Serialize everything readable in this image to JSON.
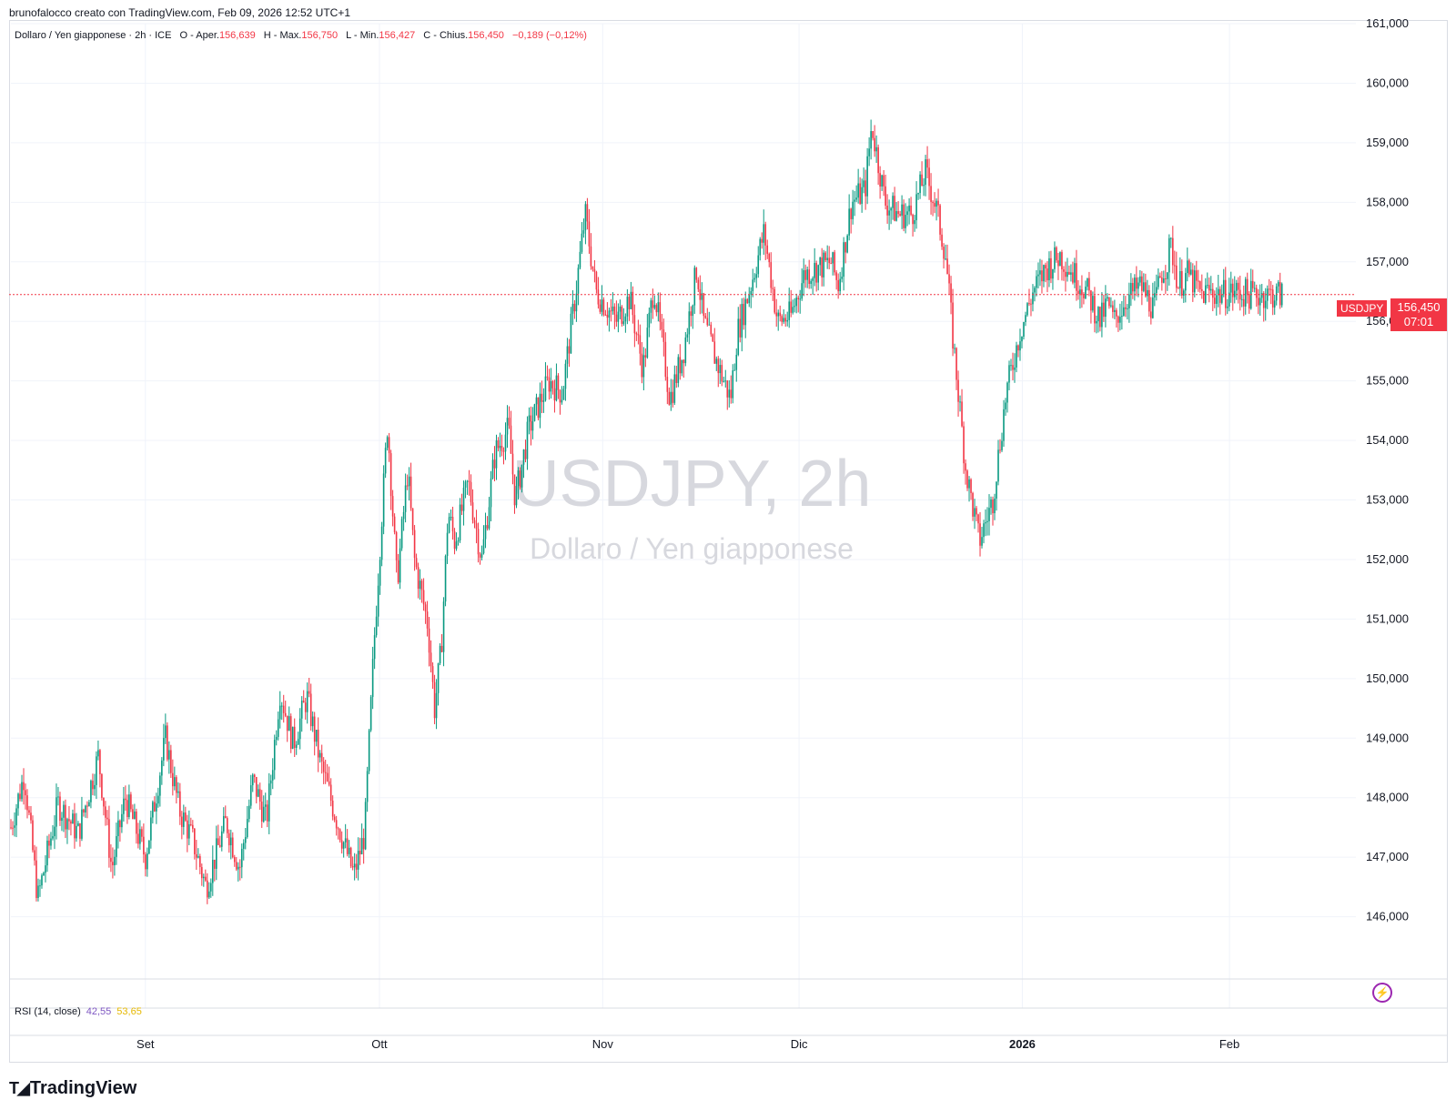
{
  "caption": "brunofalocco creato con TradingView.com, Feb 09, 2026 12:52 UTC+1",
  "legend": {
    "title": "Dollaro / Yen giapponese · 2h · ICE",
    "o_label": "O - Aper.",
    "o_value": "156,639",
    "h_label": "H - Max.",
    "h_value": "156,750",
    "l_label": "L - Min.",
    "l_value": "156,427",
    "c_label": "C - Chius.",
    "c_value": "156,450",
    "change": "−0,189 (−0,12%)"
  },
  "watermark": {
    "symbol": "USDJPY, 2h",
    "name": "Dollaro / Yen giapponese"
  },
  "price_tag": {
    "symbol": "USDJPY",
    "price": "156,450",
    "countdown": "07:01"
  },
  "rsi": {
    "label": "RSI (14, close)",
    "value1": "42,55",
    "value2": "53,65"
  },
  "brand": "TradingView",
  "colors": {
    "up": "#089981",
    "down": "#f23645",
    "grid": "#f0f3fa",
    "text": "#131722",
    "watermark": "#d7d8de"
  },
  "chart_data": {
    "type": "line",
    "title": "Dollaro / Yen giapponese · 2h · ICE",
    "ylim": [
      145,
      161
    ],
    "y_ticks": [
      "146,000",
      "147,000",
      "148,000",
      "149,000",
      "150,000",
      "151,000",
      "152,000",
      "153,000",
      "154,000",
      "155,000",
      "156,000",
      "157,000",
      "158,000",
      "159,000",
      "160,000",
      "161,000"
    ],
    "x_ticks": [
      {
        "label": "Set",
        "t": 0.1
      },
      {
        "label": "Ott",
        "t": 0.274
      },
      {
        "label": "Nov",
        "t": 0.44
      },
      {
        "label": "Dic",
        "t": 0.586
      },
      {
        "label": "2026",
        "t": 0.752
      },
      {
        "label": "Feb",
        "t": 0.906
      }
    ],
    "grid": true,
    "last_price": 156.45,
    "series": [
      {
        "x": [
          0.0,
          0.01,
          0.02,
          0.035,
          0.05,
          0.065,
          0.075,
          0.085,
          0.1,
          0.115,
          0.125,
          0.135,
          0.145,
          0.16,
          0.17,
          0.18,
          0.19,
          0.2,
          0.21,
          0.22,
          0.23,
          0.24,
          0.248,
          0.255,
          0.263,
          0.27,
          0.28,
          0.287,
          0.295,
          0.3,
          0.31,
          0.315,
          0.32,
          0.325,
          0.33,
          0.34,
          0.35,
          0.36,
          0.37,
          0.375,
          0.385,
          0.4,
          0.41,
          0.42,
          0.427,
          0.435,
          0.45,
          0.46,
          0.47,
          0.478,
          0.49,
          0.5,
          0.51,
          0.515,
          0.525,
          0.535,
          0.54,
          0.55,
          0.56,
          0.57,
          0.58,
          0.59,
          0.6,
          0.61,
          0.615,
          0.625,
          0.635,
          0.64,
          0.65,
          0.66,
          0.67,
          0.68,
          0.688,
          0.695,
          0.7,
          0.71,
          0.72,
          0.73,
          0.74,
          0.75,
          0.76,
          0.77,
          0.78,
          0.79,
          0.8,
          0.81,
          0.815,
          0.82,
          0.83,
          0.84,
          0.85,
          0.855,
          0.86,
          0.862,
          0.865,
          0.868,
          0.875,
          0.885,
          0.89,
          0.9,
          0.91,
          0.92,
          0.93,
          0.935,
          0.94,
          0.945
        ],
        "values": [
          147.5,
          148.4,
          146.3,
          147.9,
          147.4,
          148.7,
          146.8,
          148.0,
          147.0,
          149.0,
          147.8,
          147.3,
          146.5,
          147.6,
          146.8,
          148.3,
          147.6,
          149.8,
          148.9,
          149.7,
          148.6,
          147.8,
          147.2,
          146.7,
          147.4,
          150.6,
          154.3,
          151.6,
          153.5,
          152.0,
          150.9,
          149.5,
          150.5,
          152.8,
          152.3,
          153.3,
          152.0,
          153.8,
          154.2,
          153.0,
          154.2,
          155.0,
          154.8,
          156.5,
          157.8,
          156.5,
          156.0,
          156.4,
          155.2,
          156.6,
          154.7,
          155.5,
          156.9,
          156.0,
          155.3,
          154.7,
          155.8,
          156.6,
          157.5,
          156.0,
          156.1,
          156.8,
          156.9,
          157.0,
          156.6,
          158.0,
          158.2,
          159.3,
          158.0,
          157.8,
          157.8,
          158.5,
          157.9,
          157.1,
          155.8,
          153.5,
          152.3,
          153.0,
          154.8,
          155.8,
          156.5,
          156.9,
          157.1,
          156.8,
          156.5,
          156.0,
          156.3,
          156.0,
          156.4,
          156.6,
          156.2,
          156.8,
          157.0,
          157.3,
          157.0,
          156.6,
          156.8,
          156.45,
          156.5,
          156.45,
          156.5,
          156.45,
          156.45,
          156.45,
          156.45,
          156.45
        ]
      }
    ]
  }
}
